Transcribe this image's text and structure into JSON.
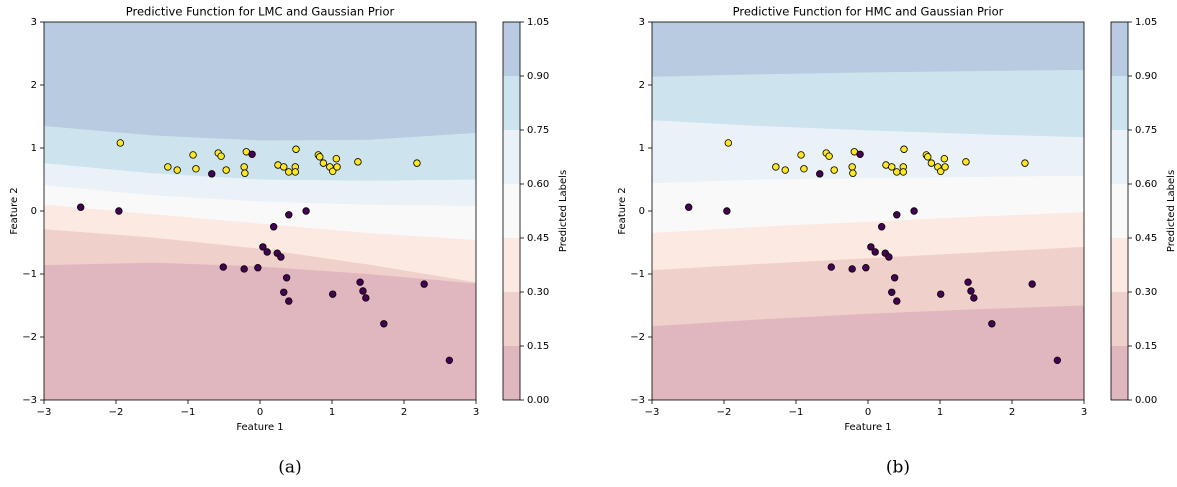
{
  "chart_data": [
    {
      "type": "contour-scatter",
      "title": "Predictive Function for LMC and Gaussian Prior",
      "xlabel": "Feature 1",
      "ylabel": "Feature 2",
      "colorbar_label": "Predicted Labels",
      "caption": "(a)",
      "xlim": [
        -3,
        3
      ],
      "ylim": [
        -3,
        3
      ],
      "xticks": [
        {
          "value": -3,
          "label": "−3"
        },
        {
          "value": -2,
          "label": "−2"
        },
        {
          "value": -1,
          "label": "−1"
        },
        0,
        1,
        2,
        3
      ],
      "yticks": [
        {
          "value": -3,
          "label": "−3"
        },
        {
          "value": -2,
          "label": "−2"
        },
        {
          "value": -1,
          "label": "−1"
        },
        0,
        1,
        2,
        3
      ],
      "cbar_ticks": [
        {
          "value": 0,
          "label": "0.00"
        },
        {
          "value": 0.15,
          "label": "0.15"
        },
        {
          "value": 0.3,
          "label": "0.30"
        },
        {
          "value": 0.45,
          "label": "0.45"
        },
        {
          "value": 0.6,
          "label": "0.60"
        },
        {
          "value": 0.75,
          "label": "0.75"
        },
        {
          "value": 0.9,
          "label": "0.90"
        },
        {
          "value": 1.05,
          "label": "1.05"
        }
      ],
      "band_colors": [
        "#e0b7bf",
        "#f0d0ca",
        "#fce9e2",
        "#f9f9f9",
        "#eaf2f8",
        "#cde3ee",
        "#b8cbe0"
      ],
      "contour_x": [
        -3,
        -1.5,
        0,
        1.5,
        3
      ],
      "contours": [
        {
          "level": 0.15,
          "y": [
            -0.86,
            -0.82,
            -0.88,
            -1.0,
            -1.15
          ]
        },
        {
          "level": 0.3,
          "y": [
            -0.29,
            -0.42,
            -0.6,
            -0.85,
            -1.13
          ]
        },
        {
          "level": 0.45,
          "y": [
            0.1,
            -0.05,
            -0.2,
            -0.35,
            -0.46
          ]
        },
        {
          "level": 0.6,
          "y": [
            0.41,
            0.25,
            0.15,
            0.1,
            0.08
          ]
        },
        {
          "level": 0.75,
          "y": [
            0.76,
            0.6,
            0.5,
            0.48,
            0.5
          ]
        },
        {
          "level": 0.9,
          "y": [
            1.35,
            1.2,
            1.12,
            1.13,
            1.24
          ]
        }
      ],
      "class_colors": [
        "#440154",
        "#fde725"
      ],
      "points": {
        "x": [
          -1.94,
          -1.28,
          -1.15,
          -0.93,
          -0.89,
          -0.58,
          -0.54,
          -0.47,
          -0.22,
          -0.21,
          -0.19,
          0.25,
          0.33,
          0.4,
          0.49,
          0.49,
          0.5,
          0.81,
          0.83,
          0.88,
          0.97,
          1.01,
          1.06,
          1.07,
          1.36,
          2.18,
          -2.49,
          -1.96,
          -0.67,
          -0.11,
          -0.51,
          -0.22,
          -0.03,
          0.04,
          0.1,
          0.19,
          0.24,
          0.29,
          0.33,
          0.37,
          0.4,
          0.4,
          0.64,
          1.01,
          1.39,
          1.43,
          1.47,
          1.72,
          2.28,
          2.63
        ],
        "y": [
          1.08,
          0.7,
          0.65,
          0.89,
          0.67,
          0.92,
          0.87,
          0.65,
          0.7,
          0.6,
          0.94,
          0.73,
          0.7,
          0.62,
          0.7,
          0.62,
          0.98,
          0.89,
          0.86,
          0.76,
          0.7,
          0.63,
          0.83,
          0.7,
          0.78,
          0.76,
          0.06,
          0.0,
          0.59,
          0.9,
          -0.89,
          -0.92,
          -0.9,
          -0.57,
          -0.65,
          -0.25,
          -0.67,
          -0.73,
          -1.29,
          -1.06,
          -0.06,
          -1.43,
          0.0,
          -1.32,
          -1.13,
          -1.27,
          -1.38,
          -1.79,
          -1.16,
          -2.37
        ],
        "class": [
          1,
          1,
          1,
          1,
          1,
          1,
          1,
          1,
          1,
          1,
          1,
          1,
          1,
          1,
          1,
          1,
          1,
          1,
          1,
          1,
          1,
          1,
          1,
          1,
          1,
          1,
          0,
          0,
          0,
          0,
          0,
          0,
          0,
          0,
          0,
          0,
          0,
          0,
          0,
          0,
          0,
          0,
          0,
          0,
          0,
          0,
          0,
          0,
          0,
          0
        ]
      }
    },
    {
      "type": "contour-scatter",
      "title": "Predictive Function for HMC and Gaussian Prior",
      "xlabel": "Feature 1",
      "ylabel": "Feature 2",
      "colorbar_label": "Predicted Labels",
      "caption": "(b)",
      "xlim": [
        -3,
        3
      ],
      "ylim": [
        -3,
        3
      ],
      "xticks": [
        {
          "value": -3,
          "label": "−3"
        },
        {
          "value": -2,
          "label": "−2"
        },
        {
          "value": -1,
          "label": "−1"
        },
        0,
        1,
        2,
        3
      ],
      "yticks": [
        {
          "value": -3,
          "label": "−3"
        },
        {
          "value": -2,
          "label": "−2"
        },
        {
          "value": -1,
          "label": "−1"
        },
        0,
        1,
        2,
        3
      ],
      "cbar_ticks": [
        {
          "value": 0,
          "label": "0.00"
        },
        {
          "value": 0.15,
          "label": "0.15"
        },
        {
          "value": 0.3,
          "label": "0.30"
        },
        {
          "value": 0.45,
          "label": "0.45"
        },
        {
          "value": 0.6,
          "label": "0.60"
        },
        {
          "value": 0.75,
          "label": "0.75"
        },
        {
          "value": 0.9,
          "label": "0.90"
        },
        {
          "value": 1.05,
          "label": "1.05"
        }
      ],
      "band_colors": [
        "#e0b7bf",
        "#f0d0ca",
        "#fce9e2",
        "#f9f9f9",
        "#eaf2f8",
        "#cde3ee",
        "#b8cbe0"
      ],
      "contour_x": [
        -3,
        -1.5,
        0,
        1.5,
        3
      ],
      "contours": [
        {
          "level": 0.15,
          "y": [
            -1.83,
            -1.72,
            -1.63,
            -1.56,
            -1.5
          ]
        },
        {
          "level": 0.3,
          "y": [
            -0.94,
            -0.84,
            -0.75,
            -0.66,
            -0.57
          ]
        },
        {
          "level": 0.45,
          "y": [
            -0.35,
            -0.25,
            -0.17,
            -0.09,
            -0.02
          ]
        },
        {
          "level": 0.6,
          "y": [
            0.44,
            0.5,
            0.52,
            0.54,
            0.56
          ]
        },
        {
          "level": 0.75,
          "y": [
            1.44,
            1.35,
            1.28,
            1.22,
            1.17
          ]
        },
        {
          "level": 0.9,
          "y": [
            2.13,
            2.17,
            2.2,
            2.22,
            2.24
          ]
        }
      ],
      "class_colors": [
        "#440154",
        "#fde725"
      ],
      "points": {
        "x": [
          -1.94,
          -1.28,
          -1.15,
          -0.93,
          -0.89,
          -0.58,
          -0.54,
          -0.47,
          -0.22,
          -0.21,
          -0.19,
          0.25,
          0.33,
          0.4,
          0.49,
          0.49,
          0.5,
          0.81,
          0.83,
          0.88,
          0.97,
          1.01,
          1.06,
          1.07,
          1.36,
          2.18,
          -2.49,
          -1.96,
          -0.67,
          -0.11,
          -0.51,
          -0.22,
          -0.03,
          0.04,
          0.1,
          0.19,
          0.24,
          0.29,
          0.33,
          0.37,
          0.4,
          0.4,
          0.64,
          1.01,
          1.39,
          1.43,
          1.47,
          1.72,
          2.28,
          2.63
        ],
        "y": [
          1.08,
          0.7,
          0.65,
          0.89,
          0.67,
          0.92,
          0.87,
          0.65,
          0.7,
          0.6,
          0.94,
          0.73,
          0.7,
          0.62,
          0.7,
          0.62,
          0.98,
          0.89,
          0.86,
          0.76,
          0.7,
          0.63,
          0.83,
          0.7,
          0.78,
          0.76,
          0.06,
          0.0,
          0.59,
          0.9,
          -0.89,
          -0.92,
          -0.9,
          -0.57,
          -0.65,
          -0.25,
          -0.67,
          -0.73,
          -1.29,
          -1.06,
          -0.06,
          -1.43,
          0.0,
          -1.32,
          -1.13,
          -1.27,
          -1.38,
          -1.79,
          -1.16,
          -2.37
        ],
        "class": [
          1,
          1,
          1,
          1,
          1,
          1,
          1,
          1,
          1,
          1,
          1,
          1,
          1,
          1,
          1,
          1,
          1,
          1,
          1,
          1,
          1,
          1,
          1,
          1,
          1,
          1,
          0,
          0,
          0,
          0,
          0,
          0,
          0,
          0,
          0,
          0,
          0,
          0,
          0,
          0,
          0,
          0,
          0,
          0,
          0,
          0,
          0,
          0,
          0,
          0
        ]
      }
    }
  ]
}
